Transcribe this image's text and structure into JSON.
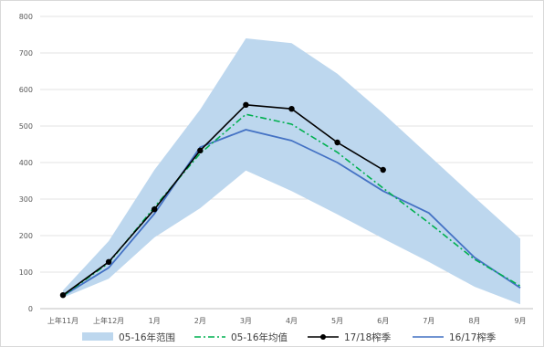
{
  "chart_data": {
    "type": "line",
    "categories": [
      "上年11月",
      "上年12月",
      "1月",
      "2月",
      "3月",
      "4月",
      "5月",
      "6月",
      "7月",
      "8月",
      "9月"
    ],
    "ylim": [
      0,
      800
    ],
    "yticks": [
      0,
      100,
      200,
      300,
      400,
      500,
      600,
      700,
      800
    ],
    "grid": true,
    "legend_position": "bottom",
    "range_band": {
      "name": "05-16年范围",
      "color": "#bdd7ee",
      "upper": [
        50,
        185,
        380,
        545,
        740,
        727,
        643,
        535,
        420,
        305,
        192
      ],
      "lower": [
        30,
        82,
        195,
        275,
        378,
        322,
        258,
        192,
        128,
        60,
        12
      ]
    },
    "series": [
      {
        "name": "05-16年均值",
        "color": "#00b050",
        "style": "dashdot",
        "values": [
          35,
          125,
          278,
          425,
          532,
          505,
          428,
          330,
          235,
          135,
          62
        ]
      },
      {
        "name": "17/18榨季",
        "color": "#000000",
        "style": "solid-markers",
        "values": [
          37,
          128,
          272,
          433,
          558,
          547,
          455,
          380,
          null,
          null,
          null
        ]
      },
      {
        "name": "16/17榨季",
        "color": "#4472c4",
        "style": "solid",
        "values": [
          35,
          112,
          260,
          442,
          490,
          460,
          400,
          322,
          262,
          140,
          57
        ]
      }
    ]
  }
}
